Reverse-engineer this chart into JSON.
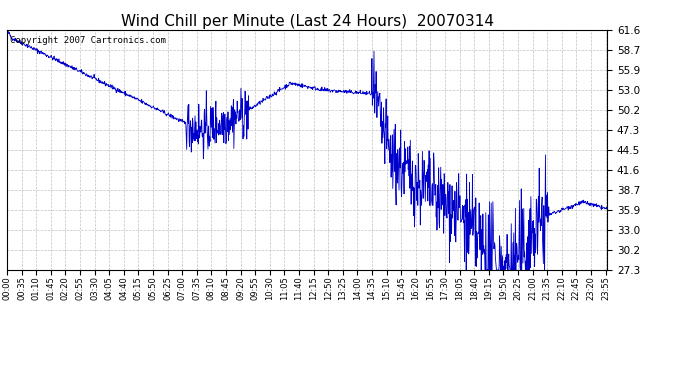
{
  "title": "Wind Chill per Minute (Last 24 Hours)  20070314",
  "copyright_text": "Copyright 2007 Cartronics.com",
  "line_color": "#0000CC",
  "bg_color": "#ffffff",
  "plot_bg_color": "#ffffff",
  "grid_color": "#bbbbbb",
  "yticks": [
    27.3,
    30.2,
    33.0,
    35.9,
    38.7,
    41.6,
    44.5,
    47.3,
    50.2,
    53.0,
    55.9,
    58.7,
    61.6
  ],
  "ylim": [
    27.3,
    61.6
  ],
  "title_fontsize": 11,
  "copyright_fontsize": 6.5,
  "xtick_step_minutes": 35
}
